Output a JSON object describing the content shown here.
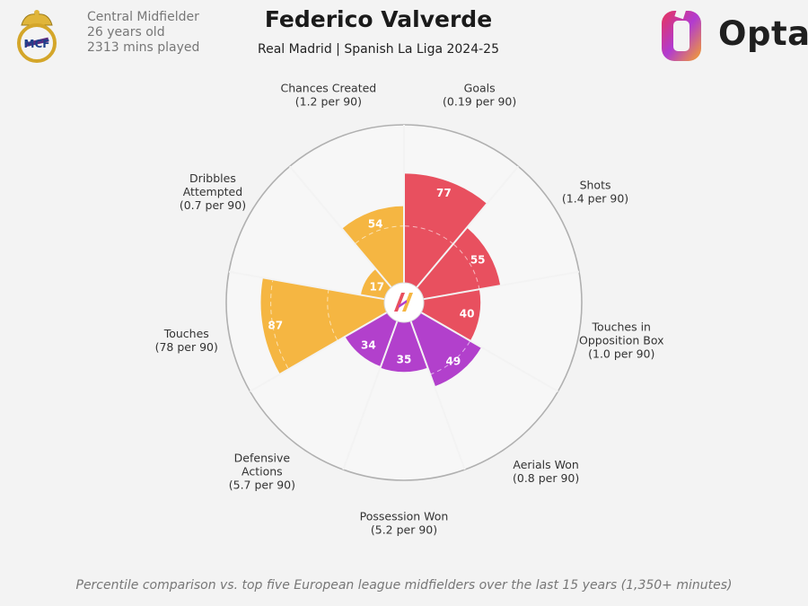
{
  "header": {
    "player_name": "Federico Valverde",
    "subtitle": "Real Madrid | Spanish La Liga 2024-25",
    "position": "Central Midfielder",
    "age": "26 years old",
    "minutes": "2313 mins played"
  },
  "logos": {
    "club_crest": "real-madrid-crest",
    "brand": "Opta"
  },
  "footnote": "Percentile comparison vs. top five European league midfielders over the last 15 years (1,350+ minutes)",
  "colors": {
    "attacking": "#e8505f",
    "defending": "#b240cc",
    "possession": "#f5b642",
    "ring": "#c7c7c7",
    "background": "#f3f3f3"
  },
  "chart_data": {
    "type": "polar-bar",
    "scale_max": 100,
    "categories": [
      {
        "label": "Goals",
        "per90": "(0.19 per 90)",
        "value": 77,
        "group": "attacking"
      },
      {
        "label": "Shots",
        "per90": "(1.4 per 90)",
        "value": 55,
        "group": "attacking"
      },
      {
        "label": "Touches in\nOpposition Box",
        "per90": "(1.0 per 90)",
        "value": 40,
        "group": "attacking"
      },
      {
        "label": "Aerials Won",
        "per90": "(0.8 per 90)",
        "value": 49,
        "group": "defending"
      },
      {
        "label": "Possession Won",
        "per90": "(5.2 per 90)",
        "value": 35,
        "group": "defending"
      },
      {
        "label": "Defensive\nActions",
        "per90": "(5.7 per 90)",
        "value": 34,
        "group": "defending"
      },
      {
        "label": "Touches",
        "per90": "(78 per 90)",
        "value": 87,
        "group": "possession"
      },
      {
        "label": "Dribbles\nAttempted",
        "per90": "(0.7 per 90)",
        "value": 17,
        "group": "possession"
      },
      {
        "label": "Chances Created",
        "per90": "(1.2 per 90)",
        "value": 54,
        "group": "possession"
      }
    ]
  }
}
